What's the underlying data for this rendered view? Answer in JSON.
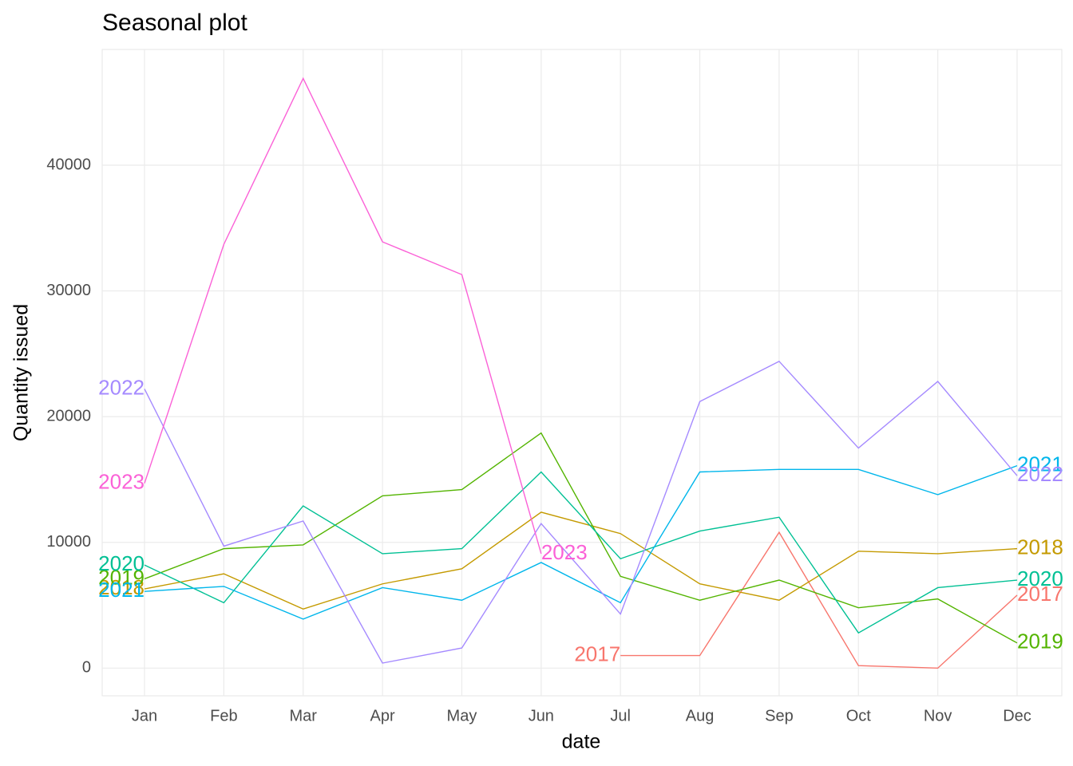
{
  "chart_data": {
    "type": "line",
    "title": "Seasonal plot",
    "x_label": "date",
    "y_label": "Quantity issued",
    "categories": [
      "Jan",
      "Feb",
      "Mar",
      "Apr",
      "May",
      "Jun",
      "Jul",
      "Aug",
      "Sep",
      "Oct",
      "Nov",
      "Dec"
    ],
    "ylim": [
      -2200,
      49200
    ],
    "yticks": [
      0,
      10000,
      20000,
      30000,
      40000
    ],
    "grid": true,
    "series": [
      {
        "name": "2017",
        "color": "#F8766D",
        "values": [
          null,
          null,
          null,
          null,
          null,
          null,
          1000,
          1000,
          10800,
          200,
          0,
          5800
        ]
      },
      {
        "name": "2018",
        "color": "#C49A00",
        "values": [
          6300,
          7500,
          4700,
          6700,
          7900,
          12400,
          10700,
          6700,
          5400,
          9300,
          9100,
          9500
        ]
      },
      {
        "name": "2019",
        "color": "#53B400",
        "values": [
          7100,
          9500,
          9800,
          13700,
          14200,
          18700,
          7300,
          5400,
          7000,
          4800,
          5500,
          2000
        ]
      },
      {
        "name": "2020",
        "color": "#00C094",
        "values": [
          8200,
          5200,
          12900,
          9100,
          9500,
          15600,
          8700,
          10900,
          12000,
          2800,
          6400,
          7000
        ]
      },
      {
        "name": "2021",
        "color": "#00B6EB",
        "values": [
          6100,
          6500,
          3900,
          6400,
          5400,
          8400,
          5200,
          15600,
          15800,
          15800,
          13800,
          16100
        ]
      },
      {
        "name": "2022",
        "color": "#A58AFF",
        "values": [
          22200,
          9700,
          11700,
          400,
          1600,
          11500,
          4300,
          21200,
          24400,
          17500,
          22800,
          15300
        ]
      },
      {
        "name": "2023",
        "color": "#FB61D7",
        "values": [
          14700,
          33700,
          46900,
          33900,
          31300,
          9100,
          null,
          null,
          null,
          null,
          null,
          null
        ]
      }
    ]
  }
}
